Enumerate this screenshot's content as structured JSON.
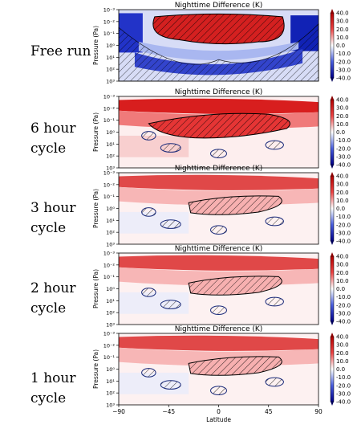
{
  "colorbar": {
    "ticks": [
      "40.0",
      "30.0",
      "20.0",
      "10.0",
      "0.0",
      "-10.0",
      "-20.0",
      "-30.0",
      "-40.0"
    ],
    "colors": {
      "high": "#cc0000",
      "mid_high": "#f4a3a3",
      "zero": "#ffffff",
      "mid_low": "#a8b8f0",
      "low": "#00008a"
    }
  },
  "chart_data": [
    {
      "type": "heatmap",
      "row_label": "Free run",
      "title": "Nighttime Difference (K)",
      "ylabel": "Pressure (Pa)",
      "xlabel": "",
      "y_ticks": [
        "10⁻³",
        "10⁻²",
        "10⁻¹",
        "10⁰",
        "10¹",
        "10²",
        "10³"
      ],
      "y_scale": "log",
      "ylim": [
        1000,
        0.001
      ],
      "xlim": [
        -90,
        90
      ],
      "clim": [
        -40,
        40
      ],
      "pattern": "strong"
    },
    {
      "type": "heatmap",
      "row_label": "6 hour cycle",
      "title": "Nighttime Difference (K)",
      "ylabel": "Pressure (Pa)",
      "xlabel": "",
      "y_ticks": [
        "10⁻³",
        "10⁻²",
        "10⁻¹",
        "10⁰",
        "10¹",
        "10²",
        "10³"
      ],
      "y_scale": "log",
      "ylim": [
        1000,
        0.001
      ],
      "xlim": [
        -90,
        90
      ],
      "clim": [
        -40,
        40
      ],
      "pattern": "medium"
    },
    {
      "type": "heatmap",
      "row_label": "3 hour cycle",
      "title": "Nighttime Difference (K)",
      "ylabel": "Pressure (Pa)",
      "xlabel": "",
      "y_ticks": [
        "10⁻³",
        "10⁻²",
        "10⁻¹",
        "10⁰",
        "10¹",
        "10²",
        "10³"
      ],
      "y_scale": "log",
      "ylim": [
        1000,
        0.001
      ],
      "xlim": [
        -90,
        90
      ],
      "clim": [
        -40,
        40
      ],
      "pattern": "weak"
    },
    {
      "type": "heatmap",
      "row_label": "2 hour cycle",
      "title": "Nighttime Difference (K)",
      "ylabel": "Pressure (Pa)",
      "xlabel": "",
      "y_ticks": [
        "10⁻³",
        "10⁻²",
        "10⁻¹",
        "10⁰",
        "10¹",
        "10²",
        "10³"
      ],
      "y_scale": "log",
      "ylim": [
        1000,
        0.001
      ],
      "xlim": [
        -90,
        90
      ],
      "clim": [
        -40,
        40
      ],
      "pattern": "weak"
    },
    {
      "type": "heatmap",
      "row_label": "1 hour cycle",
      "title": "Nighttime Difference (K)",
      "ylabel": "Pressure (Pa)",
      "xlabel": "Latitude",
      "x_ticks": [
        "−90",
        "−45",
        "0",
        "45",
        "90"
      ],
      "y_ticks": [
        "10⁻³",
        "10⁻²",
        "10⁻¹",
        "10⁰",
        "10¹",
        "10²",
        "10³"
      ],
      "y_scale": "log",
      "ylim": [
        1000,
        0.001
      ],
      "xlim": [
        -90,
        90
      ],
      "clim": [
        -40,
        40
      ],
      "pattern": "weak"
    }
  ]
}
